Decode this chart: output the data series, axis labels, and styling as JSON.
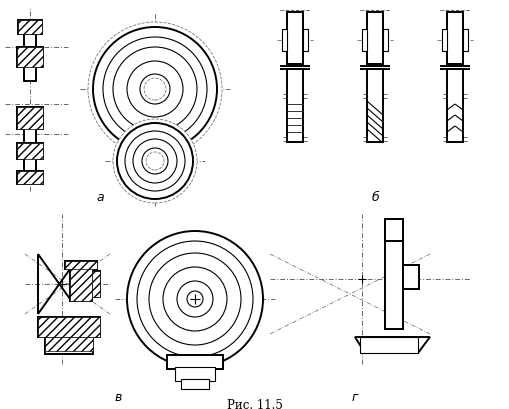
{
  "title": "Рис. 11.5",
  "label_a": "а",
  "label_b": "б",
  "label_v": "в",
  "label_g": "г",
  "bg_color": "#ffffff",
  "line_color": "#000000",
  "dash_color": "#666666",
  "title_fontsize": 8.5,
  "label_fontsize": 9
}
